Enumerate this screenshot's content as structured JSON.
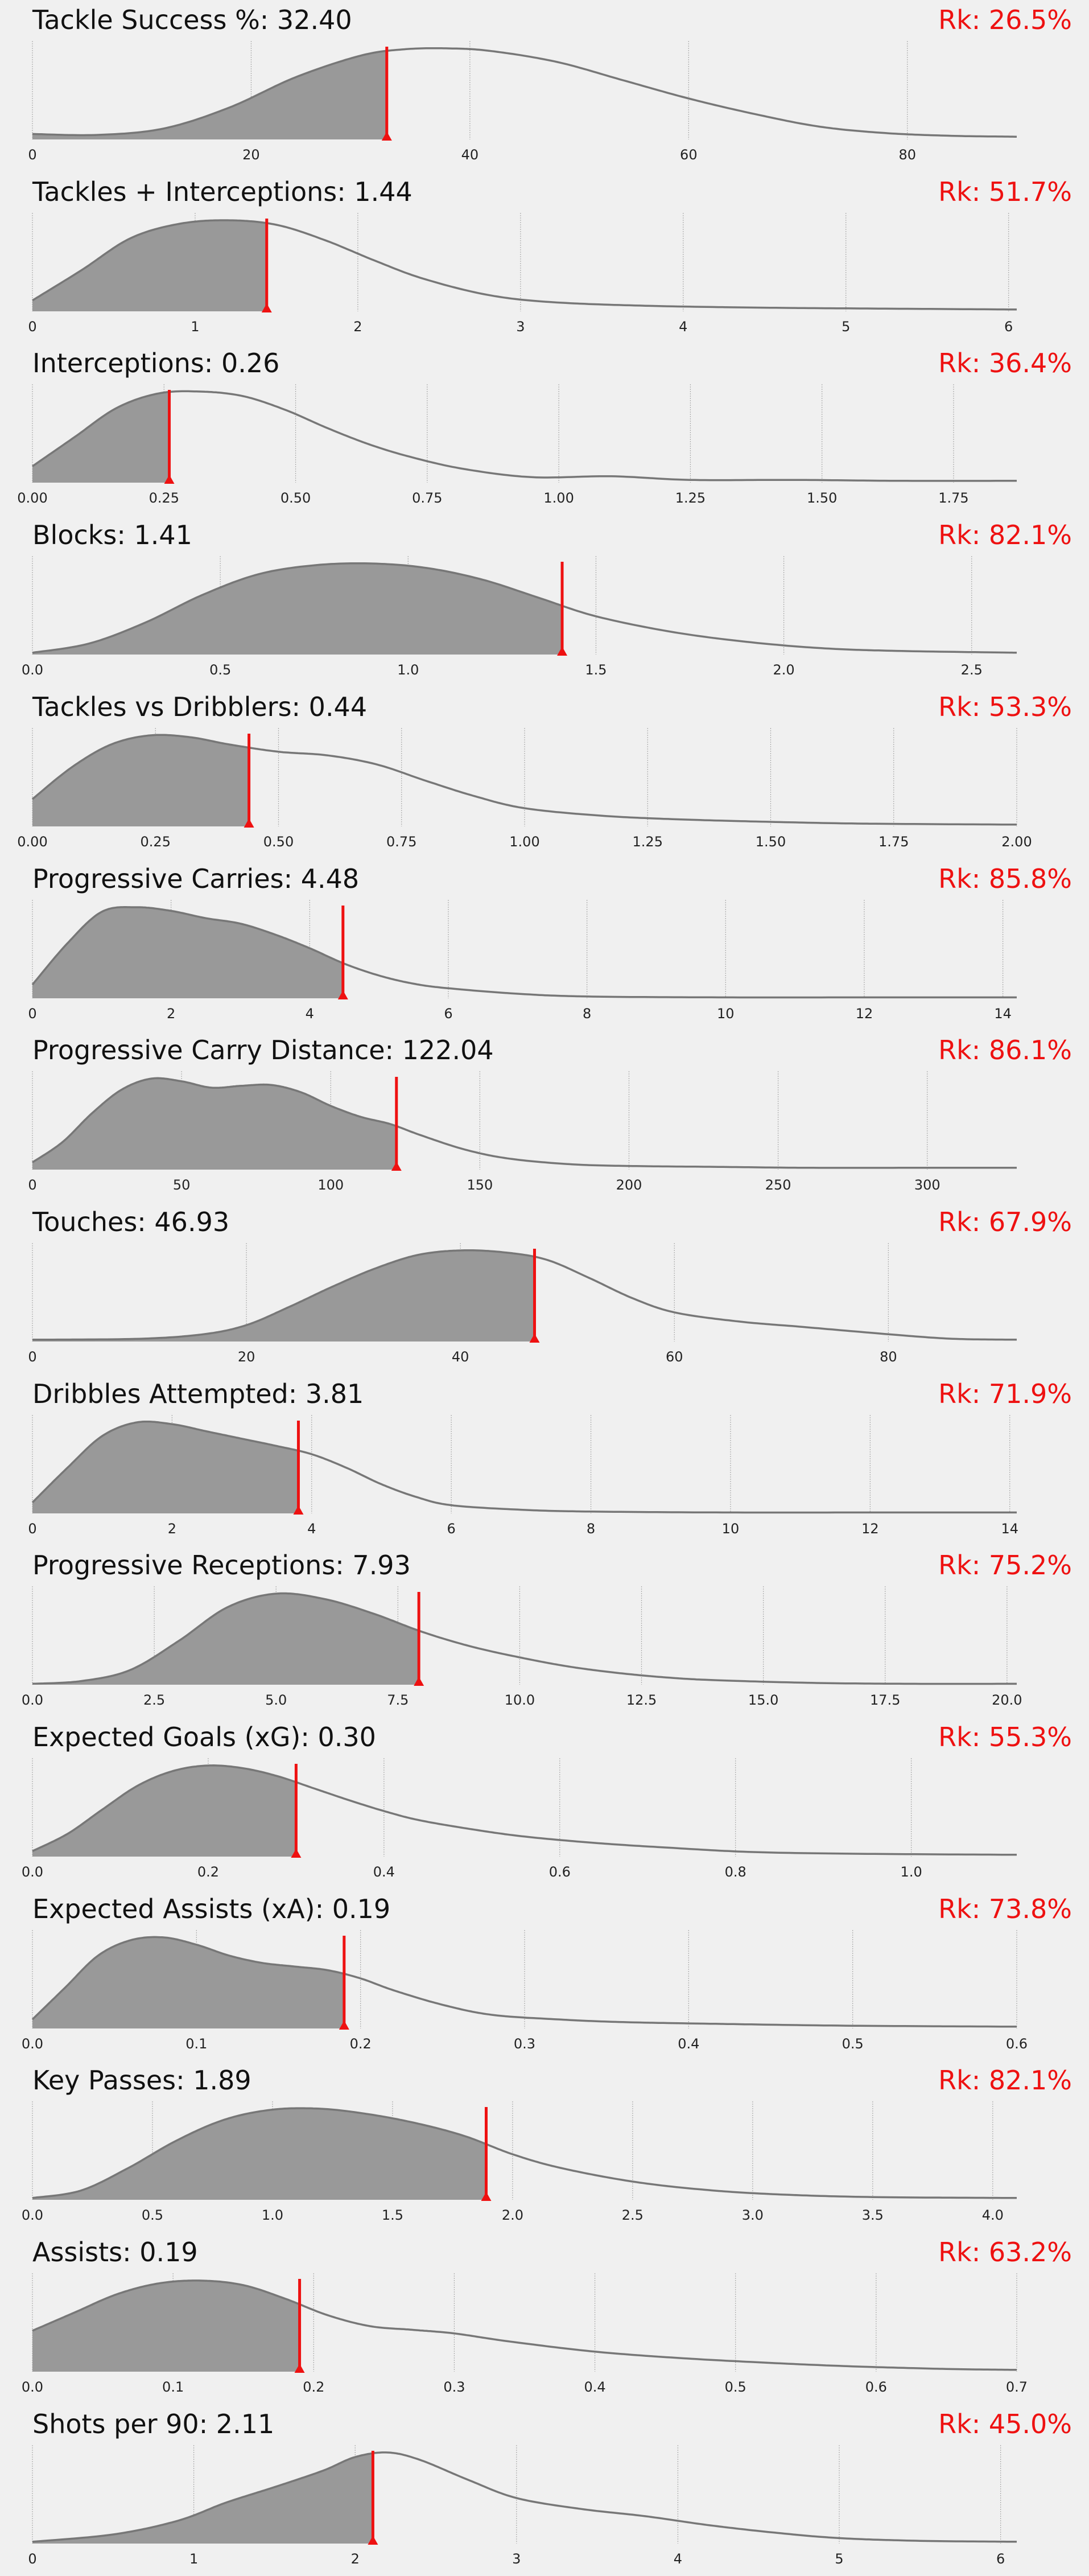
{
  "colors": {
    "background": "#f0f0f0",
    "fill": "#999999",
    "curve": "#777777",
    "marker": "#ee1111",
    "rank": "#ee1111",
    "grid": "#aaaaaa"
  },
  "chart_data": [
    {
      "type": "area",
      "title": "Tackle Success %: 32.40",
      "rank": "Rk: 26.5%",
      "value": 32.4,
      "xlim": [
        0,
        90
      ],
      "ticks": [
        0,
        20,
        40,
        60,
        80
      ],
      "tick_labels": [
        "0",
        "20",
        "40",
        "60",
        "80"
      ],
      "x": [
        0,
        6,
        12,
        18,
        24,
        30,
        34,
        38,
        42,
        48,
        54,
        60,
        66,
        72,
        78,
        84,
        90
      ],
      "y": [
        0.06,
        0.05,
        0.12,
        0.35,
        0.68,
        0.92,
        0.99,
        1.0,
        0.97,
        0.85,
        0.65,
        0.45,
        0.28,
        0.14,
        0.07,
        0.04,
        0.03
      ]
    },
    {
      "type": "area",
      "title": "Tackles + Interceptions: 1.44",
      "rank": "Rk: 51.7%",
      "value": 1.44,
      "xlim": [
        0,
        6.05
      ],
      "ticks": [
        0,
        1,
        2,
        3,
        4,
        5,
        6
      ],
      "tick_labels": [
        "0",
        "1",
        "2",
        "3",
        "4",
        "5",
        "6"
      ],
      "x": [
        0,
        0.3,
        0.6,
        0.9,
        1.2,
        1.5,
        1.8,
        2.1,
        2.4,
        2.8,
        3.2,
        3.8,
        4.5,
        5.2,
        6.05
      ],
      "y": [
        0.12,
        0.45,
        0.8,
        0.96,
        1.0,
        0.95,
        0.78,
        0.56,
        0.36,
        0.18,
        0.1,
        0.06,
        0.04,
        0.03,
        0.02
      ]
    },
    {
      "type": "area",
      "title": "Interceptions: 0.26",
      "rank": "Rk: 36.4%",
      "value": 0.26,
      "xlim": [
        0,
        1.87
      ],
      "ticks": [
        0,
        0.25,
        0.5,
        0.75,
        1.0,
        1.25,
        1.5,
        1.75
      ],
      "tick_labels": [
        "0.00",
        "0.25",
        "0.50",
        "0.75",
        "1.00",
        "1.25",
        "1.50",
        "1.75"
      ],
      "x": [
        0,
        0.08,
        0.16,
        0.24,
        0.32,
        0.4,
        0.48,
        0.56,
        0.64,
        0.72,
        0.82,
        0.95,
        1.1,
        1.25,
        1.45,
        1.65,
        1.87
      ],
      "y": [
        0.18,
        0.5,
        0.82,
        0.98,
        1.0,
        0.95,
        0.8,
        0.6,
        0.42,
        0.28,
        0.15,
        0.06,
        0.07,
        0.03,
        0.03,
        0.02,
        0.02
      ]
    },
    {
      "type": "area",
      "title": "Blocks: 1.41",
      "rank": "Rk: 82.1%",
      "value": 1.41,
      "xlim": [
        0,
        2.62
      ],
      "ticks": [
        0,
        0.5,
        1.0,
        1.5,
        2.0,
        2.5
      ],
      "tick_labels": [
        "0.0",
        "0.5",
        "1.0",
        "1.5",
        "2.0",
        "2.5"
      ],
      "x": [
        0,
        0.15,
        0.3,
        0.45,
        0.6,
        0.75,
        0.9,
        1.05,
        1.2,
        1.35,
        1.5,
        1.7,
        1.9,
        2.1,
        2.3,
        2.62
      ],
      "y": [
        0.02,
        0.12,
        0.35,
        0.65,
        0.88,
        0.98,
        1.0,
        0.95,
        0.82,
        0.62,
        0.42,
        0.25,
        0.14,
        0.07,
        0.04,
        0.02
      ]
    },
    {
      "type": "area",
      "title": "Tackles vs Dribblers: 0.44",
      "rank": "Rk: 53.3%",
      "value": 0.44,
      "xlim": [
        0,
        2.0
      ],
      "ticks": [
        0,
        0.25,
        0.5,
        0.75,
        1.0,
        1.25,
        1.5,
        1.75,
        2.0
      ],
      "tick_labels": [
        "0.00",
        "0.25",
        "0.50",
        "0.75",
        "1.00",
        "1.25",
        "1.50",
        "1.75",
        "2.00"
      ],
      "x": [
        0,
        0.08,
        0.16,
        0.24,
        0.32,
        0.4,
        0.5,
        0.6,
        0.7,
        0.8,
        0.9,
        1.0,
        1.15,
        1.3,
        1.5,
        1.7,
        2.0
      ],
      "y": [
        0.3,
        0.65,
        0.9,
        1.0,
        0.98,
        0.9,
        0.82,
        0.78,
        0.68,
        0.5,
        0.33,
        0.2,
        0.12,
        0.08,
        0.05,
        0.03,
        0.02
      ]
    },
    {
      "type": "area",
      "title": "Progressive Carries: 4.48",
      "rank": "Rk: 85.8%",
      "value": 4.48,
      "xlim": [
        0,
        14.2
      ],
      "ticks": [
        0,
        2,
        4,
        6,
        8,
        10,
        12,
        14
      ],
      "tick_labels": [
        "0",
        "2",
        "4",
        "6",
        "8",
        "10",
        "12",
        "14"
      ],
      "x": [
        0,
        0.5,
        1.0,
        1.5,
        2.0,
        2.5,
        3.0,
        3.5,
        4.0,
        4.5,
        5.0,
        5.5,
        6.0,
        7.0,
        8.0,
        10.0,
        12.0,
        14.2
      ],
      "y": [
        0.15,
        0.6,
        0.95,
        1.0,
        0.96,
        0.88,
        0.82,
        0.7,
        0.55,
        0.38,
        0.25,
        0.16,
        0.11,
        0.05,
        0.02,
        0.01,
        0.01,
        0.01
      ]
    },
    {
      "type": "area",
      "title": "Progressive Carry Distance: 122.04",
      "rank": "Rk: 86.1%",
      "value": 122.04,
      "xlim": [
        0,
        330
      ],
      "ticks": [
        0,
        50,
        100,
        150,
        200,
        250,
        300
      ],
      "tick_labels": [
        "0",
        "50",
        "100",
        "150",
        "200",
        "250",
        "300"
      ],
      "x": [
        0,
        10,
        20,
        30,
        40,
        50,
        60,
        70,
        80,
        90,
        100,
        110,
        120,
        130,
        145,
        160,
        180,
        200,
        230,
        260,
        300,
        330
      ],
      "y": [
        0.08,
        0.3,
        0.62,
        0.88,
        1.0,
        0.97,
        0.9,
        0.92,
        0.93,
        0.85,
        0.7,
        0.58,
        0.5,
        0.38,
        0.22,
        0.12,
        0.06,
        0.04,
        0.03,
        0.02,
        0.02,
        0.02
      ]
    },
    {
      "type": "area",
      "title": "Touches: 46.93",
      "rank": "Rk: 67.9%",
      "value": 46.93,
      "xlim": [
        0,
        92
      ],
      "ticks": [
        0,
        20,
        40,
        60,
        80
      ],
      "tick_labels": [
        "0",
        "20",
        "40",
        "60",
        "80"
      ],
      "x": [
        0,
        10,
        16,
        20,
        24,
        28,
        32,
        36,
        40,
        44,
        48,
        52,
        56,
        60,
        66,
        72,
        80,
        86,
        92
      ],
      "y": [
        0.02,
        0.03,
        0.08,
        0.18,
        0.38,
        0.6,
        0.8,
        0.95,
        1.0,
        0.98,
        0.9,
        0.7,
        0.48,
        0.32,
        0.22,
        0.16,
        0.08,
        0.03,
        0.02
      ]
    },
    {
      "type": "area",
      "title": "Dribbles Attempted: 3.81",
      "rank": "Rk: 71.9%",
      "value": 3.81,
      "xlim": [
        0,
        14.1
      ],
      "ticks": [
        0,
        2,
        4,
        6,
        8,
        10,
        12,
        14
      ],
      "tick_labels": [
        "0",
        "2",
        "4",
        "6",
        "8",
        "10",
        "12",
        "14"
      ],
      "x": [
        0,
        0.5,
        1.0,
        1.5,
        2.0,
        2.5,
        3.0,
        3.5,
        4.0,
        4.5,
        5.0,
        5.5,
        6.0,
        7.0,
        8.0,
        10.0,
        12.0,
        14.1
      ],
      "y": [
        0.12,
        0.5,
        0.85,
        1.0,
        0.98,
        0.9,
        0.82,
        0.74,
        0.65,
        0.5,
        0.32,
        0.18,
        0.09,
        0.04,
        0.02,
        0.01,
        0.01,
        0.01
      ]
    },
    {
      "type": "area",
      "title": "Progressive Receptions: 7.93",
      "rank": "Rk: 75.2%",
      "value": 7.93,
      "xlim": [
        0,
        20.2
      ],
      "ticks": [
        0,
        2.5,
        5.0,
        7.5,
        10.0,
        12.5,
        15.0,
        17.5,
        20.0
      ],
      "tick_labels": [
        "0.0",
        "2.5",
        "5.0",
        "7.5",
        "10.0",
        "12.5",
        "15.0",
        "17.5",
        "20.0"
      ],
      "x": [
        0,
        1,
        2,
        3,
        4,
        5,
        6,
        7,
        8,
        9,
        10,
        11,
        12,
        13,
        14,
        16,
        18,
        20.2
      ],
      "y": [
        0.01,
        0.04,
        0.16,
        0.48,
        0.85,
        1.0,
        0.94,
        0.78,
        0.58,
        0.42,
        0.3,
        0.2,
        0.13,
        0.08,
        0.05,
        0.02,
        0.01,
        0.01
      ]
    },
    {
      "type": "area",
      "title": "Expected Goals (xG): 0.30",
      "rank": "Rk: 55.3%",
      "value": 0.3,
      "xlim": [
        0,
        1.12
      ],
      "ticks": [
        0,
        0.2,
        0.4,
        0.6,
        0.8,
        1.0
      ],
      "tick_labels": [
        "0.0",
        "0.2",
        "0.4",
        "0.6",
        "0.8",
        "1.0"
      ],
      "x": [
        0,
        0.04,
        0.08,
        0.12,
        0.16,
        0.2,
        0.24,
        0.28,
        0.32,
        0.36,
        0.4,
        0.44,
        0.5,
        0.56,
        0.64,
        0.72,
        0.82,
        0.95,
        1.12
      ],
      "y": [
        0.06,
        0.25,
        0.52,
        0.78,
        0.94,
        1.0,
        0.97,
        0.88,
        0.75,
        0.62,
        0.5,
        0.4,
        0.3,
        0.22,
        0.15,
        0.1,
        0.05,
        0.03,
        0.02
      ]
    },
    {
      "type": "area",
      "title": "Expected Assists (xA): 0.19",
      "rank": "Rk: 73.8%",
      "value": 0.19,
      "xlim": [
        0,
        0.6
      ],
      "ticks": [
        0,
        0.1,
        0.2,
        0.3,
        0.4,
        0.5,
        0.6
      ],
      "tick_labels": [
        "0.0",
        "0.1",
        "0.2",
        "0.3",
        "0.4",
        "0.5",
        "0.6"
      ],
      "x": [
        0,
        0.02,
        0.04,
        0.06,
        0.08,
        0.1,
        0.12,
        0.14,
        0.16,
        0.18,
        0.2,
        0.22,
        0.25,
        0.28,
        0.32,
        0.36,
        0.42,
        0.5,
        0.6
      ],
      "y": [
        0.1,
        0.45,
        0.8,
        0.97,
        1.0,
        0.92,
        0.8,
        0.72,
        0.68,
        0.64,
        0.55,
        0.42,
        0.26,
        0.15,
        0.1,
        0.07,
        0.05,
        0.03,
        0.02
      ]
    },
    {
      "type": "area",
      "title": "Key Passes: 1.89",
      "rank": "Rk: 82.1%",
      "value": 1.89,
      "xlim": [
        0,
        4.1
      ],
      "ticks": [
        0,
        0.5,
        1.0,
        1.5,
        2.0,
        2.5,
        3.0,
        3.5,
        4.0
      ],
      "tick_labels": [
        "0.0",
        "0.5",
        "1.0",
        "1.5",
        "2.0",
        "2.5",
        "3.0",
        "3.5",
        "4.0"
      ],
      "x": [
        0,
        0.2,
        0.4,
        0.6,
        0.8,
        1.0,
        1.2,
        1.4,
        1.6,
        1.8,
        2.0,
        2.2,
        2.5,
        2.8,
        3.1,
        3.5,
        4.1
      ],
      "y": [
        0.02,
        0.1,
        0.35,
        0.65,
        0.88,
        0.99,
        1.0,
        0.94,
        0.84,
        0.7,
        0.5,
        0.35,
        0.2,
        0.11,
        0.06,
        0.03,
        0.02
      ]
    },
    {
      "type": "area",
      "title": "Assists: 0.19",
      "rank": "Rk: 63.2%",
      "value": 0.19,
      "xlim": [
        0,
        0.7
      ],
      "ticks": [
        0,
        0.1,
        0.2,
        0.3,
        0.4,
        0.5,
        0.6,
        0.7
      ],
      "tick_labels": [
        "0.0",
        "0.1",
        "0.2",
        "0.3",
        "0.4",
        "0.5",
        "0.6",
        "0.7"
      ],
      "x": [
        0,
        0.03,
        0.06,
        0.09,
        0.12,
        0.15,
        0.18,
        0.21,
        0.24,
        0.27,
        0.3,
        0.34,
        0.4,
        0.46,
        0.52,
        0.58,
        0.65,
        0.7
      ],
      "y": [
        0.45,
        0.65,
        0.85,
        0.97,
        1.0,
        0.95,
        0.8,
        0.62,
        0.5,
        0.46,
        0.42,
        0.33,
        0.22,
        0.15,
        0.1,
        0.06,
        0.03,
        0.02
      ]
    },
    {
      "type": "area",
      "title": "Shots per 90: 2.11",
      "rank": "Rk: 45.0%",
      "value": 2.11,
      "xlim": [
        0,
        6.1
      ],
      "ticks": [
        0,
        1,
        2,
        3,
        4,
        5,
        6
      ],
      "tick_labels": [
        "0",
        "1",
        "2",
        "3",
        "4",
        "5",
        "6"
      ],
      "x": [
        0,
        0.5,
        0.9,
        1.2,
        1.5,
        1.8,
        2.0,
        2.2,
        2.4,
        2.7,
        3.0,
        3.4,
        3.8,
        4.2,
        4.6,
        5.0,
        5.5,
        6.1
      ],
      "y": [
        0.02,
        0.1,
        0.25,
        0.45,
        0.62,
        0.8,
        0.95,
        1.0,
        0.92,
        0.7,
        0.5,
        0.38,
        0.3,
        0.2,
        0.12,
        0.06,
        0.03,
        0.02
      ]
    }
  ]
}
